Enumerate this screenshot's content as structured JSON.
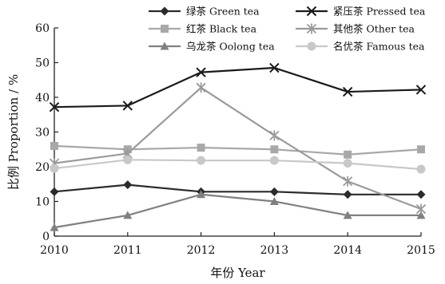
{
  "chart_data": {
    "type": "line",
    "title": "",
    "xlabel": "年份 Year",
    "ylabel": "比例 Proportion / %",
    "x": [
      2010,
      2011,
      2012,
      2013,
      2014,
      2015
    ],
    "xlim": [
      2010,
      2015
    ],
    "ylim": [
      0,
      60
    ],
    "yticks": [
      0,
      10,
      20,
      30,
      40,
      50,
      60
    ],
    "grid": false,
    "legend_position": "top",
    "series": [
      {
        "name": "绿茶 Green tea",
        "color": "#2b2b2b",
        "marker": "diamond",
        "values": [
          12.8,
          14.8,
          12.8,
          12.8,
          12.0,
          12.0
        ]
      },
      {
        "name": "红茶 Black tea",
        "color": "#a8a8a8",
        "marker": "square",
        "values": [
          26.0,
          25.0,
          25.5,
          25.0,
          23.5,
          25.0
        ]
      },
      {
        "name": "乌龙茶 Oolong tea",
        "color": "#808080",
        "marker": "triangle",
        "values": [
          2.5,
          6.0,
          12.0,
          10.0,
          6.0,
          6.0
        ]
      },
      {
        "name": "紧压茶 Pressed tea",
        "color": "#1a1a1a",
        "marker": "x",
        "values": [
          37.2,
          37.6,
          47.2,
          48.5,
          41.6,
          42.2
        ]
      },
      {
        "name": "其他茶 Other tea",
        "color": "#9a9a9a",
        "marker": "star",
        "values": [
          21.0,
          23.8,
          42.8,
          29.0,
          15.8,
          7.8
        ]
      },
      {
        "name": "名优茶 Famous tea",
        "color": "#c8c8c8",
        "marker": "circle",
        "values": [
          19.5,
          22.0,
          21.8,
          21.8,
          21.0,
          19.3
        ]
      }
    ]
  }
}
